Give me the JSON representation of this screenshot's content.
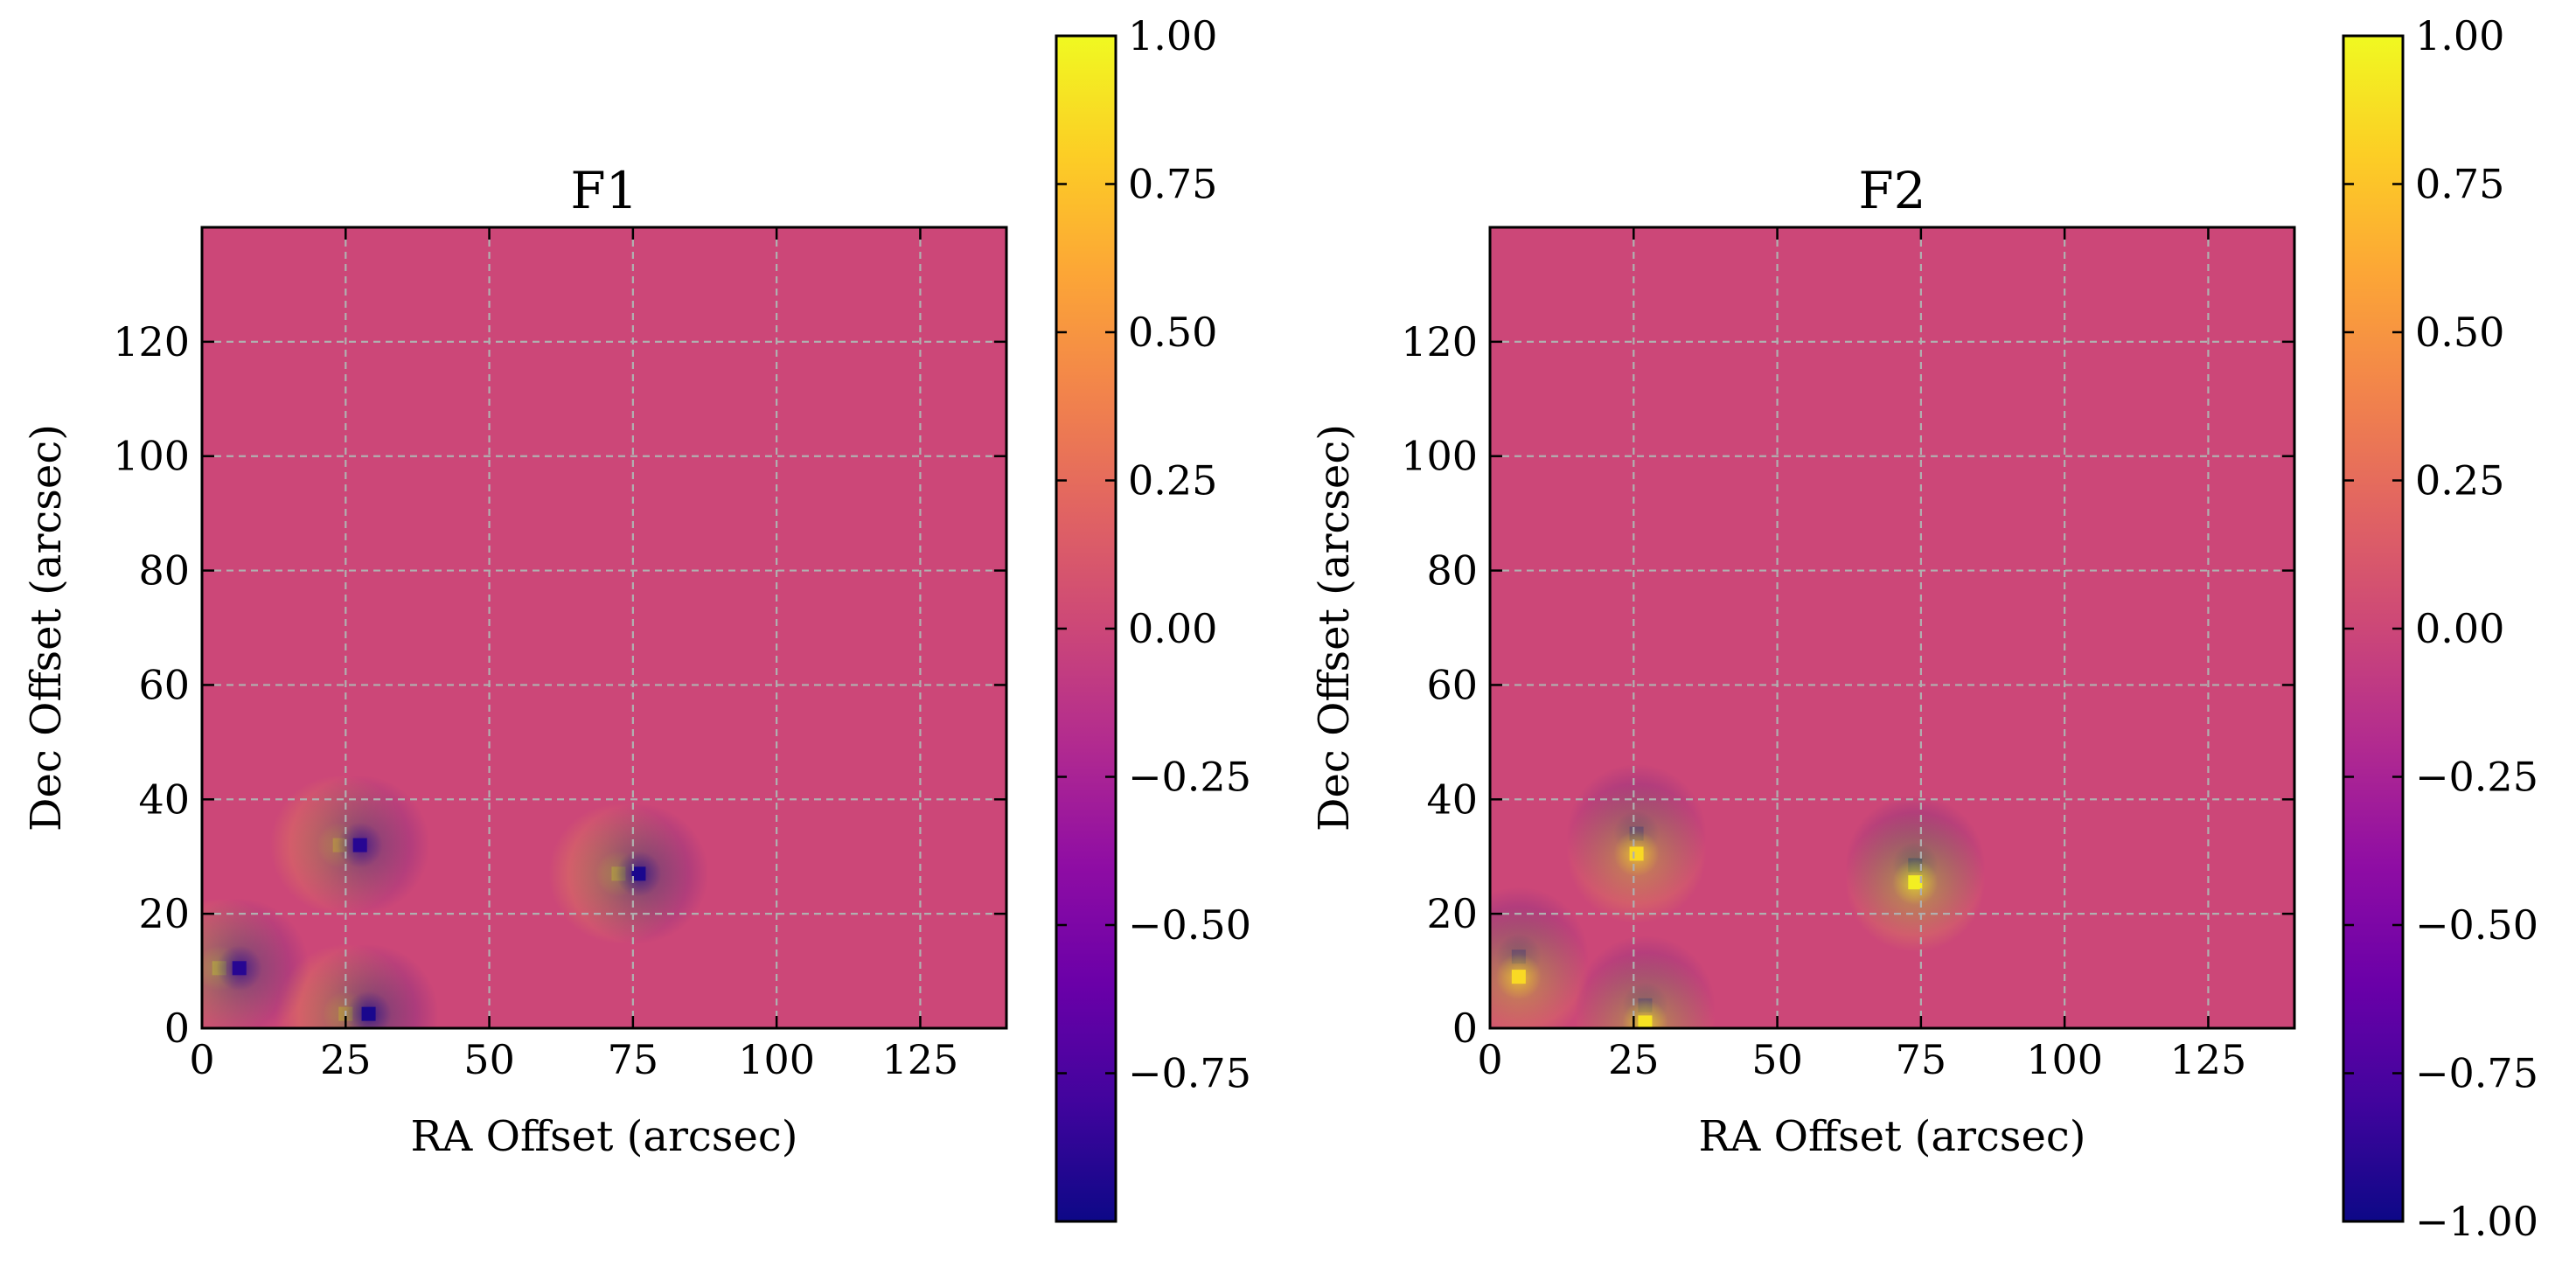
{
  "chart_data": [
    {
      "type": "heatmap",
      "title": "F1",
      "xlabel": "RA Offset (arcsec)",
      "ylabel": "Dec Offset (arcsec)",
      "xlim": [
        0,
        140
      ],
      "ylim": [
        0,
        140
      ],
      "xticks": [
        0,
        25,
        50,
        75,
        100,
        125
      ],
      "yticks": [
        0,
        20,
        40,
        60,
        80,
        100,
        120
      ],
      "grid": true,
      "colormap": "plasma",
      "background_value": 0.0,
      "clim": [
        -1.0,
        1.0
      ],
      "colorbar_ticks": [
        1.0,
        0.75,
        0.5,
        0.25,
        0.0,
        -0.25,
        -0.5,
        -0.75
      ],
      "colorbar_tick_labels": [
        "1.00",
        "0.75",
        "0.50",
        "0.25",
        "0.00",
        "−0.25",
        "−0.50",
        "−0.75"
      ],
      "dipoles": [
        {
          "pos": [
            3,
            10.5
          ],
          "value": 0.9
        },
        {
          "pos": [
            6.5,
            10.5
          ],
          "value": -0.9
        },
        {
          "pos": [
            24,
            32
          ],
          "value": 0.8
        },
        {
          "pos": [
            27.5,
            32
          ],
          "value": -0.9
        },
        {
          "pos": [
            72.5,
            27
          ],
          "value": 0.85
        },
        {
          "pos": [
            76,
            27
          ],
          "value": -0.95
        },
        {
          "pos": [
            25,
            2.5
          ],
          "value": 0.8
        },
        {
          "pos": [
            29,
            2.5
          ],
          "value": -0.95
        }
      ]
    },
    {
      "type": "heatmap",
      "title": "F2",
      "xlabel": "RA Offset (arcsec)",
      "ylabel": "Dec Offset (arcsec)",
      "xlim": [
        0,
        140
      ],
      "ylim": [
        0,
        140
      ],
      "xticks": [
        0,
        25,
        50,
        75,
        100,
        125
      ],
      "yticks": [
        0,
        20,
        40,
        60,
        80,
        100,
        120
      ],
      "grid": true,
      "colormap": "plasma",
      "background_value": 0.0,
      "clim": [
        -1.0,
        1.0
      ],
      "colorbar_ticks": [
        1.0,
        0.75,
        0.5,
        0.25,
        0.0,
        -0.25,
        -0.5,
        -0.75,
        -1.0
      ],
      "colorbar_tick_labels": [
        "1.00",
        "0.75",
        "0.50",
        "0.25",
        "0.00",
        "−0.25",
        "−0.50",
        "−0.75",
        "−1.00"
      ],
      "dipoles": [
        {
          "pos": [
            5,
            12.5
          ],
          "value": -0.9
        },
        {
          "pos": [
            5,
            9
          ],
          "value": 0.85
        },
        {
          "pos": [
            25.5,
            34
          ],
          "value": -0.9
        },
        {
          "pos": [
            25.5,
            30.5
          ],
          "value": 0.85
        },
        {
          "pos": [
            74,
            28.5
          ],
          "value": -1.0
        },
        {
          "pos": [
            74,
            25.5
          ],
          "value": 0.95
        },
        {
          "pos": [
            27,
            4
          ],
          "value": -0.9
        },
        {
          "pos": [
            27,
            1
          ],
          "value": 0.9
        }
      ]
    }
  ]
}
